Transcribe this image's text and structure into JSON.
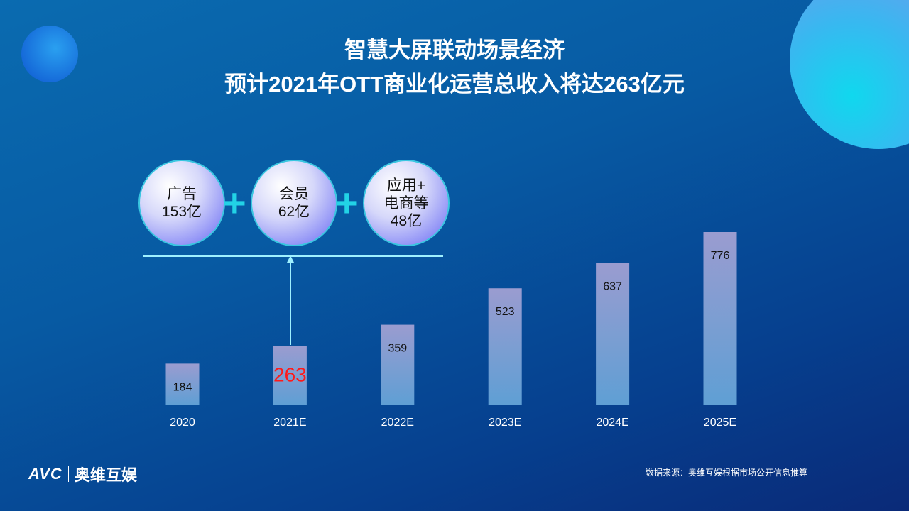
{
  "title_line1": "智慧大屏联动场景经济",
  "title_line2": "预计2021年OTT商业化运营总收入将达263亿元",
  "components": [
    {
      "label": "广告",
      "value": "153亿"
    },
    {
      "label": "会员",
      "value": "62亿"
    },
    {
      "label": "应用+\n电商等",
      "value": "48亿"
    }
  ],
  "component_lines": [
    "应用+",
    "电商等"
  ],
  "plus": "+",
  "chart_data": {
    "type": "bar",
    "categories": [
      "2020",
      "2021E",
      "2022E",
      "2023E",
      "2024E",
      "2025E"
    ],
    "values": [
      184,
      263,
      359,
      523,
      637,
      776
    ],
    "highlight": {
      "category": "2021E",
      "color": "#ff1a1a"
    },
    "bar_color": "#8f9ccc",
    "ylim": [
      0,
      776
    ]
  },
  "footer": "数据来源：奥维互娱根据市场公开信息推算",
  "logo": {
    "brand": "AVC",
    "name": "奥维互娱"
  }
}
